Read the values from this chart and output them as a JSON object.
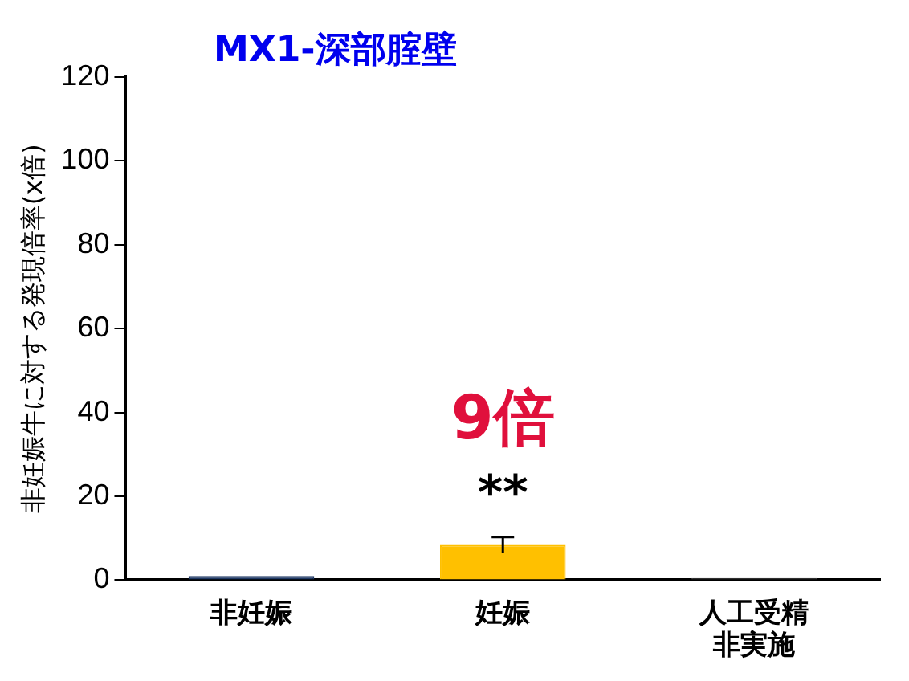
{
  "chart_data": {
    "type": "bar",
    "title": "MX1-深部腟壁",
    "ylabel": "非妊娠牛に対する発現倍率(x倍)",
    "categories": [
      "非妊娠",
      "妊娠",
      "人工受精非実施"
    ],
    "values": [
      1.0,
      8.4,
      0.5
    ],
    "colors": [
      "#1f3864",
      "#ffc000",
      "#404040"
    ],
    "errors": [
      null,
      1.9,
      null
    ],
    "ylim": [
      0,
      120
    ],
    "yticks": [
      0,
      20,
      40,
      60,
      80,
      100,
      120
    ],
    "grid": false,
    "legend": false,
    "annotations": [
      "9倍",
      "**"
    ]
  }
}
